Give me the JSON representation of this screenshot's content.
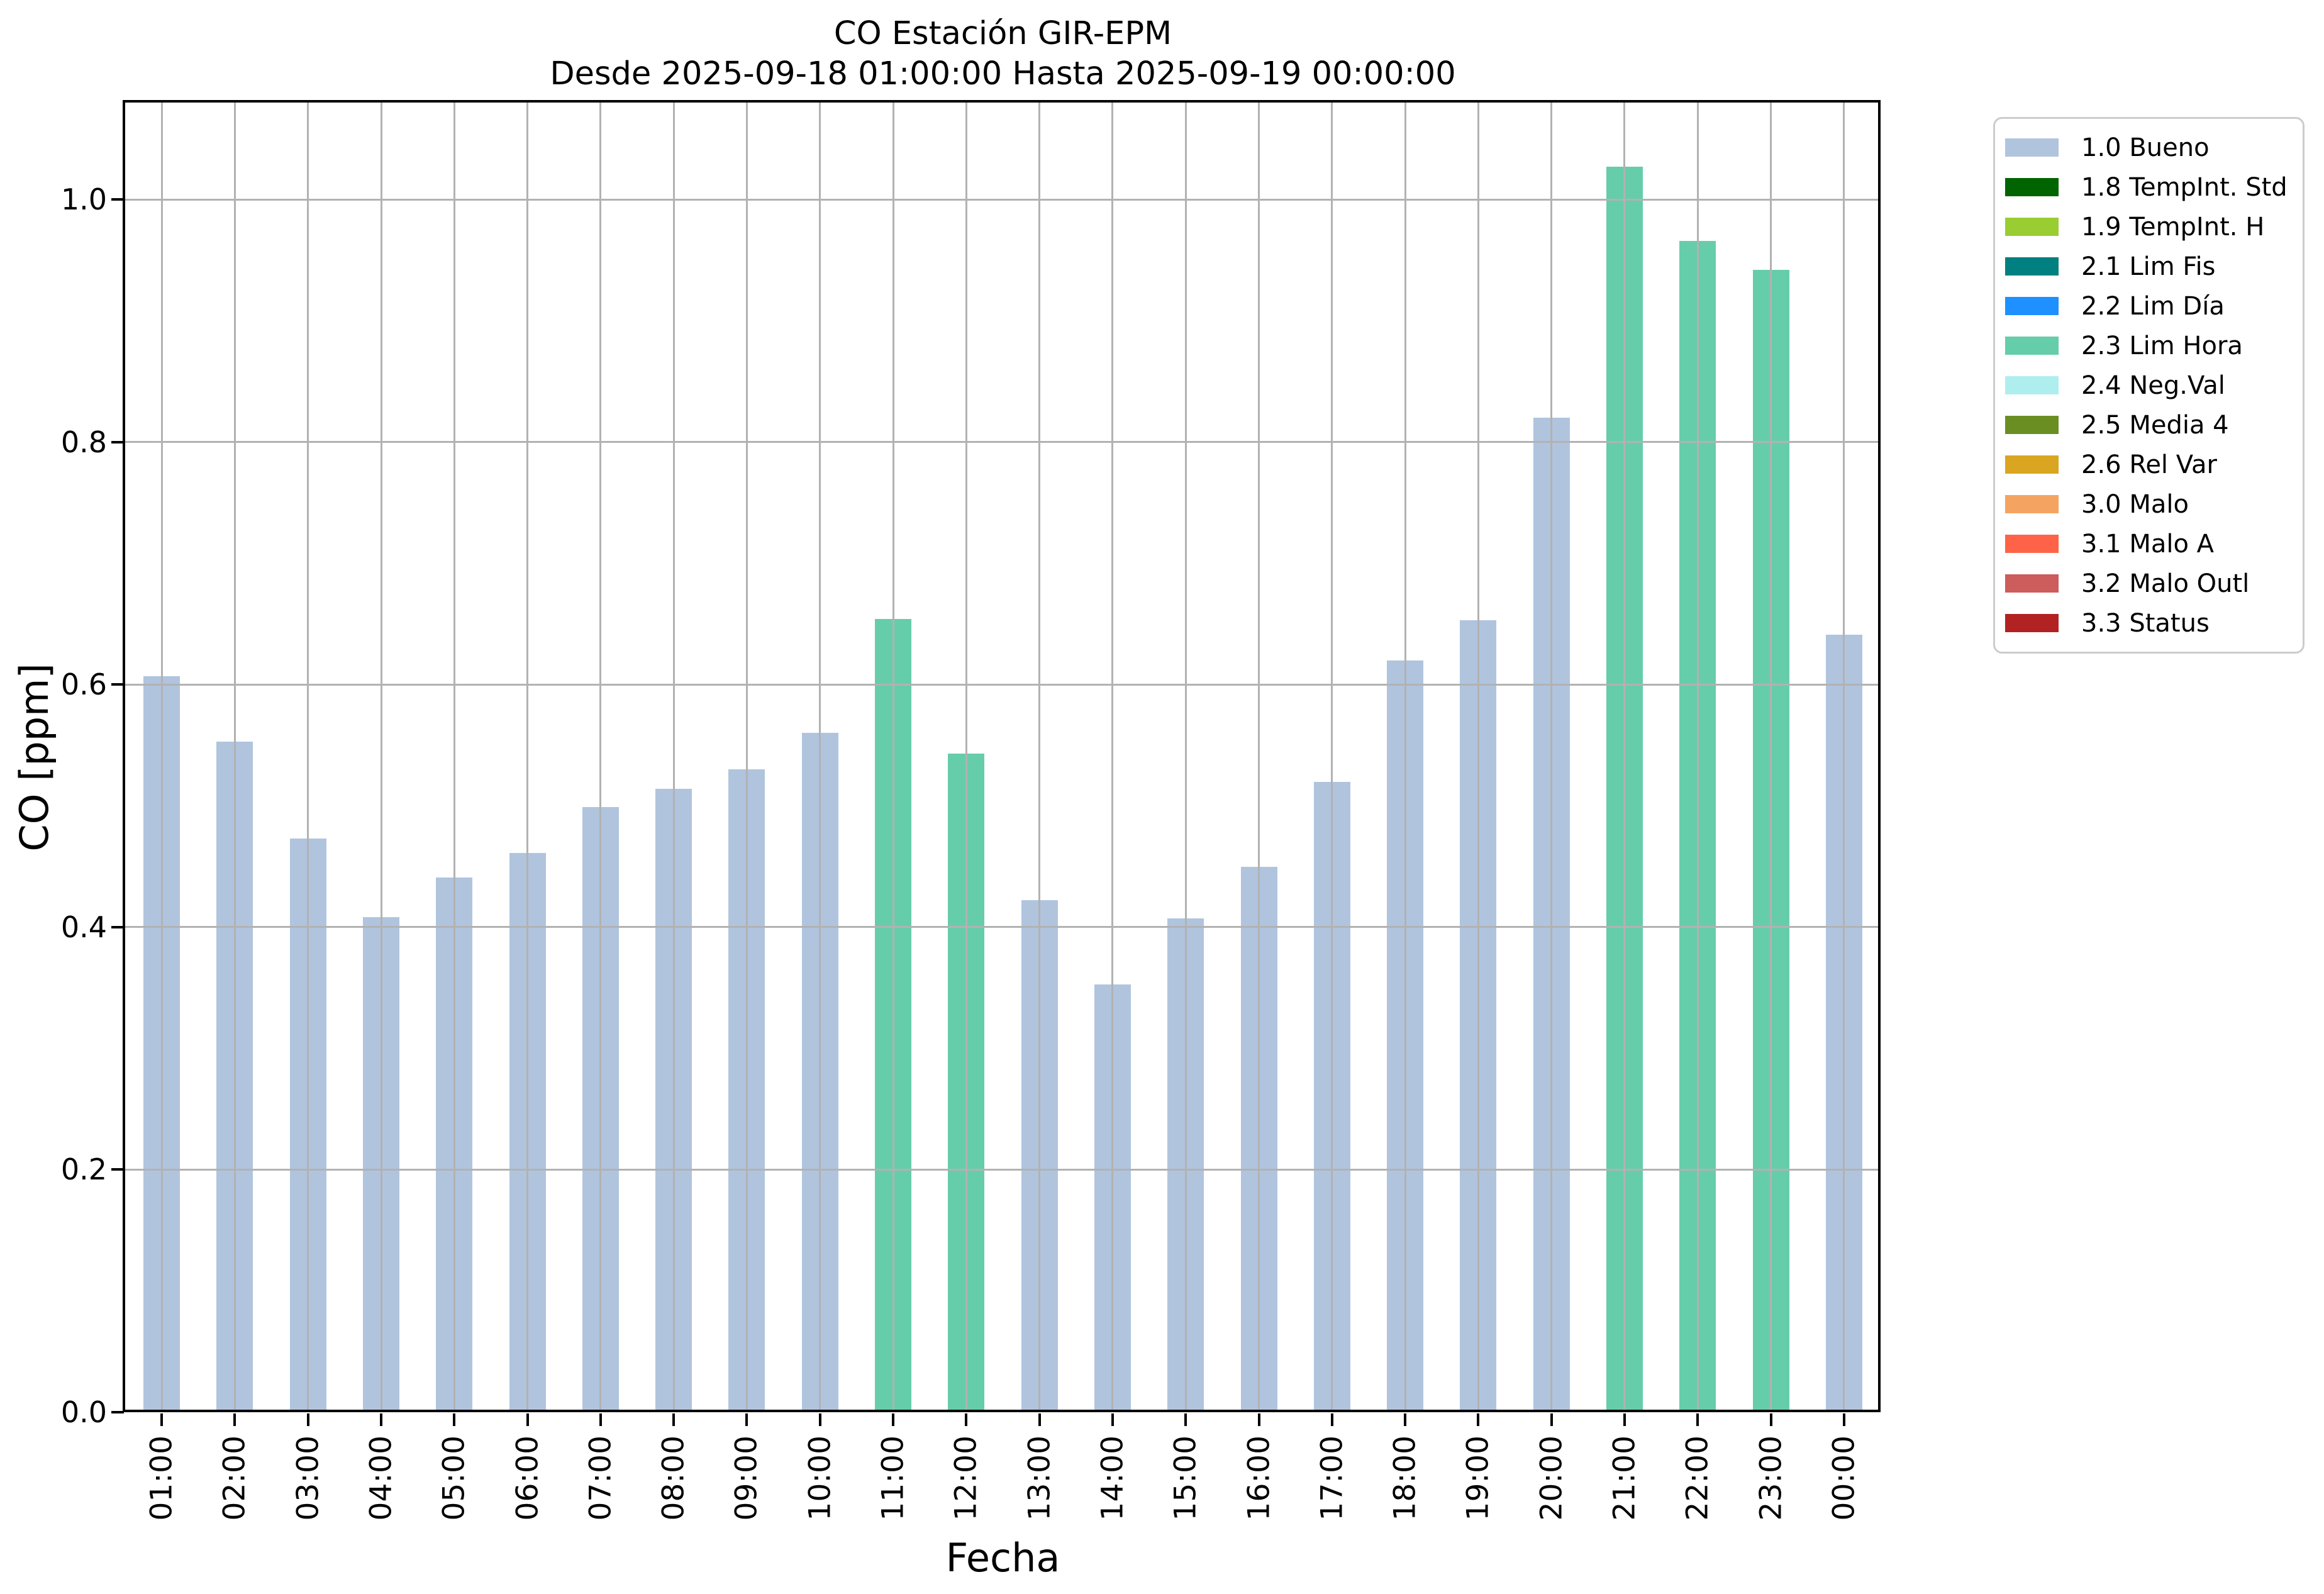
{
  "chart_data": {
    "type": "bar",
    "title": "CO Estación GIR-EPM",
    "subtitle": "Desde 2025-09-18 01:00:00 Hasta 2025-09-19 00:00:00",
    "xlabel": "Fecha",
    "ylabel": "CO [ppm]",
    "categories": [
      "01:00",
      "02:00",
      "03:00",
      "04:00",
      "05:00",
      "06:00",
      "07:00",
      "08:00",
      "09:00",
      "10:00",
      "11:00",
      "12:00",
      "13:00",
      "14:00",
      "15:00",
      "16:00",
      "17:00",
      "18:00",
      "19:00",
      "20:00",
      "21:00",
      "22:00",
      "23:00",
      "00:00"
    ],
    "values": [
      0.607,
      0.553,
      0.473,
      0.408,
      0.441,
      0.461,
      0.499,
      0.514,
      0.53,
      0.56,
      0.654,
      0.543,
      0.422,
      0.353,
      0.407,
      0.45,
      0.52,
      0.62,
      0.653,
      0.82,
      1.027,
      0.966,
      0.942,
      0.641
    ],
    "statuses": [
      "1.0 Bueno",
      "1.0 Bueno",
      "1.0 Bueno",
      "1.0 Bueno",
      "1.0 Bueno",
      "1.0 Bueno",
      "1.0 Bueno",
      "1.0 Bueno",
      "1.0 Bueno",
      "1.0 Bueno",
      "2.3 Lim Hora",
      "2.3 Lim Hora",
      "1.0 Bueno",
      "1.0 Bueno",
      "1.0 Bueno",
      "1.0 Bueno",
      "1.0 Bueno",
      "1.0 Bueno",
      "1.0 Bueno",
      "1.0 Bueno",
      "2.3 Lim Hora",
      "2.3 Lim Hora",
      "2.3 Lim Hora",
      "1.0 Bueno"
    ],
    "status_colors": {
      "1.0 Bueno": "#b0c4de",
      "2.3 Lim Hora": "#66cdaa"
    },
    "yticks": [
      "0.0",
      "0.2",
      "0.4",
      "0.6",
      "0.8",
      "1.0"
    ],
    "ylim": [
      0,
      1.08
    ],
    "grid": true,
    "legend_position": "outside-upper-right"
  },
  "legend": {
    "items": [
      {
        "label": "1.0 Bueno",
        "color": "#b0c4de"
      },
      {
        "label": "1.8 TempInt. Std",
        "color": "#006400"
      },
      {
        "label": "1.9 TempInt. H",
        "color": "#9acd32"
      },
      {
        "label": "2.1 Lim Fis",
        "color": "#008080"
      },
      {
        "label": "2.2 Lim Día",
        "color": "#1e90ff"
      },
      {
        "label": "2.3 Lim Hora",
        "color": "#66cdaa"
      },
      {
        "label": "2.4 Neg.Val",
        "color": "#afeeee"
      },
      {
        "label": "2.5 Media 4",
        "color": "#6b8e23"
      },
      {
        "label": "2.6 Rel Var",
        "color": "#daa520"
      },
      {
        "label": "3.0 Malo",
        "color": "#f4a460"
      },
      {
        "label": "3.1 Malo A",
        "color": "#ff6347"
      },
      {
        "label": "3.2 Malo Outl",
        "color": "#cd5c5c"
      },
      {
        "label": "3.3 Status",
        "color": "#b22222"
      }
    ]
  },
  "colors": {
    "grid": "#b2b2b2",
    "spine": "#000000",
    "background": "#ffffff"
  }
}
